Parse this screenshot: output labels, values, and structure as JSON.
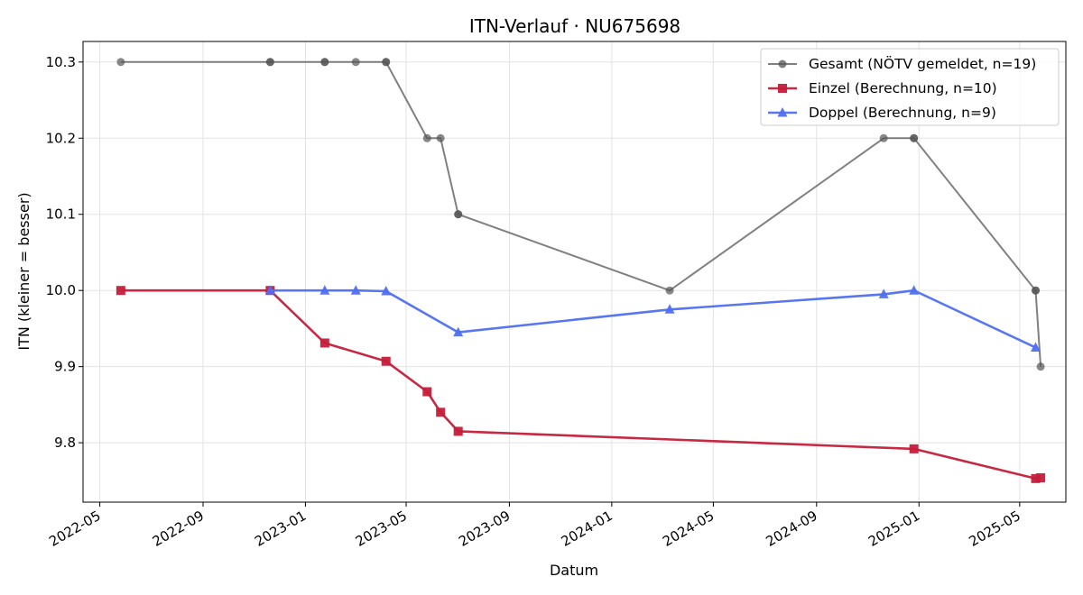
{
  "chart_data": {
    "type": "line",
    "title": "ITN-Verlauf · NU675698",
    "xlabel": "Datum",
    "ylabel": "ITN  (kleiner = besser)",
    "x_type": "date",
    "xlim": [
      "2022-04-11",
      "2025-06-25"
    ],
    "ylim": [
      9.722,
      10.327
    ],
    "x_ticks": [
      "2022-05-01",
      "2022-09-01",
      "2023-01-01",
      "2023-05-01",
      "2023-09-01",
      "2024-01-01",
      "2024-05-01",
      "2024-09-01",
      "2025-01-01",
      "2025-05-01"
    ],
    "x_tick_labels": [
      "2022-05",
      "2022-09",
      "2023-01",
      "2023-05",
      "2023-09",
      "2024-01",
      "2024-05",
      "2024-09",
      "2025-01",
      "2025-05"
    ],
    "y_ticks": [
      9.8,
      9.9,
      10.0,
      10.1,
      10.2,
      10.3
    ],
    "y_tick_labels": [
      "9.8",
      "9.9",
      "10.0",
      "10.1",
      "10.2",
      "10.3"
    ],
    "grid": true,
    "legend_position": "top-right",
    "series": [
      {
        "name": "Gesamt (NÖTV gemeldet, n=19)",
        "color": "#555555",
        "marker": "circle",
        "points": [
          {
            "x": "2022-05-26",
            "y": 10.3
          },
          {
            "x": "2022-11-20",
            "y": 10.3
          },
          {
            "x": "2022-11-20",
            "y": 10.3
          },
          {
            "x": "2023-01-24",
            "y": 10.3
          },
          {
            "x": "2023-01-24",
            "y": 10.3
          },
          {
            "x": "2023-03-02",
            "y": 10.3
          },
          {
            "x": "2023-04-07",
            "y": 10.3
          },
          {
            "x": "2023-04-07",
            "y": 10.3
          },
          {
            "x": "2023-05-26",
            "y": 10.2
          },
          {
            "x": "2023-06-11",
            "y": 10.2
          },
          {
            "x": "2023-07-02",
            "y": 10.1
          },
          {
            "x": "2023-07-02",
            "y": 10.1
          },
          {
            "x": "2024-03-10",
            "y": 10.0
          },
          {
            "x": "2024-11-20",
            "y": 10.2
          },
          {
            "x": "2024-12-26",
            "y": 10.2
          },
          {
            "x": "2024-12-26",
            "y": 10.2
          },
          {
            "x": "2025-05-20",
            "y": 10.0
          },
          {
            "x": "2025-05-20",
            "y": 10.0
          },
          {
            "x": "2025-05-26",
            "y": 9.9
          }
        ]
      },
      {
        "name": "Einzel (Berechnung, n=10)",
        "color": "#c41e3a",
        "marker": "square",
        "points": [
          {
            "x": "2022-05-26",
            "y": 10.0
          },
          {
            "x": "2022-11-20",
            "y": 10.0
          },
          {
            "x": "2023-01-24",
            "y": 9.931
          },
          {
            "x": "2023-04-07",
            "y": 9.907
          },
          {
            "x": "2023-05-26",
            "y": 9.867
          },
          {
            "x": "2023-06-11",
            "y": 9.84
          },
          {
            "x": "2023-07-02",
            "y": 9.815
          },
          {
            "x": "2024-12-26",
            "y": 9.792
          },
          {
            "x": "2025-05-20",
            "y": 9.753
          },
          {
            "x": "2025-05-26",
            "y": 9.754
          }
        ]
      },
      {
        "name": "Doppel (Berechnung, n=9)",
        "color": "#4f6ff0",
        "marker": "triangle",
        "points": [
          {
            "x": "2022-11-20",
            "y": 10.0
          },
          {
            "x": "2023-01-24",
            "y": 10.0
          },
          {
            "x": "2023-03-02",
            "y": 10.0
          },
          {
            "x": "2023-04-07",
            "y": 9.999
          },
          {
            "x": "2023-07-02",
            "y": 9.945
          },
          {
            "x": "2024-03-10",
            "y": 9.975
          },
          {
            "x": "2024-11-20",
            "y": 9.995
          },
          {
            "x": "2024-12-26",
            "y": 10.0
          },
          {
            "x": "2025-05-20",
            "y": 9.925
          }
        ]
      }
    ]
  }
}
